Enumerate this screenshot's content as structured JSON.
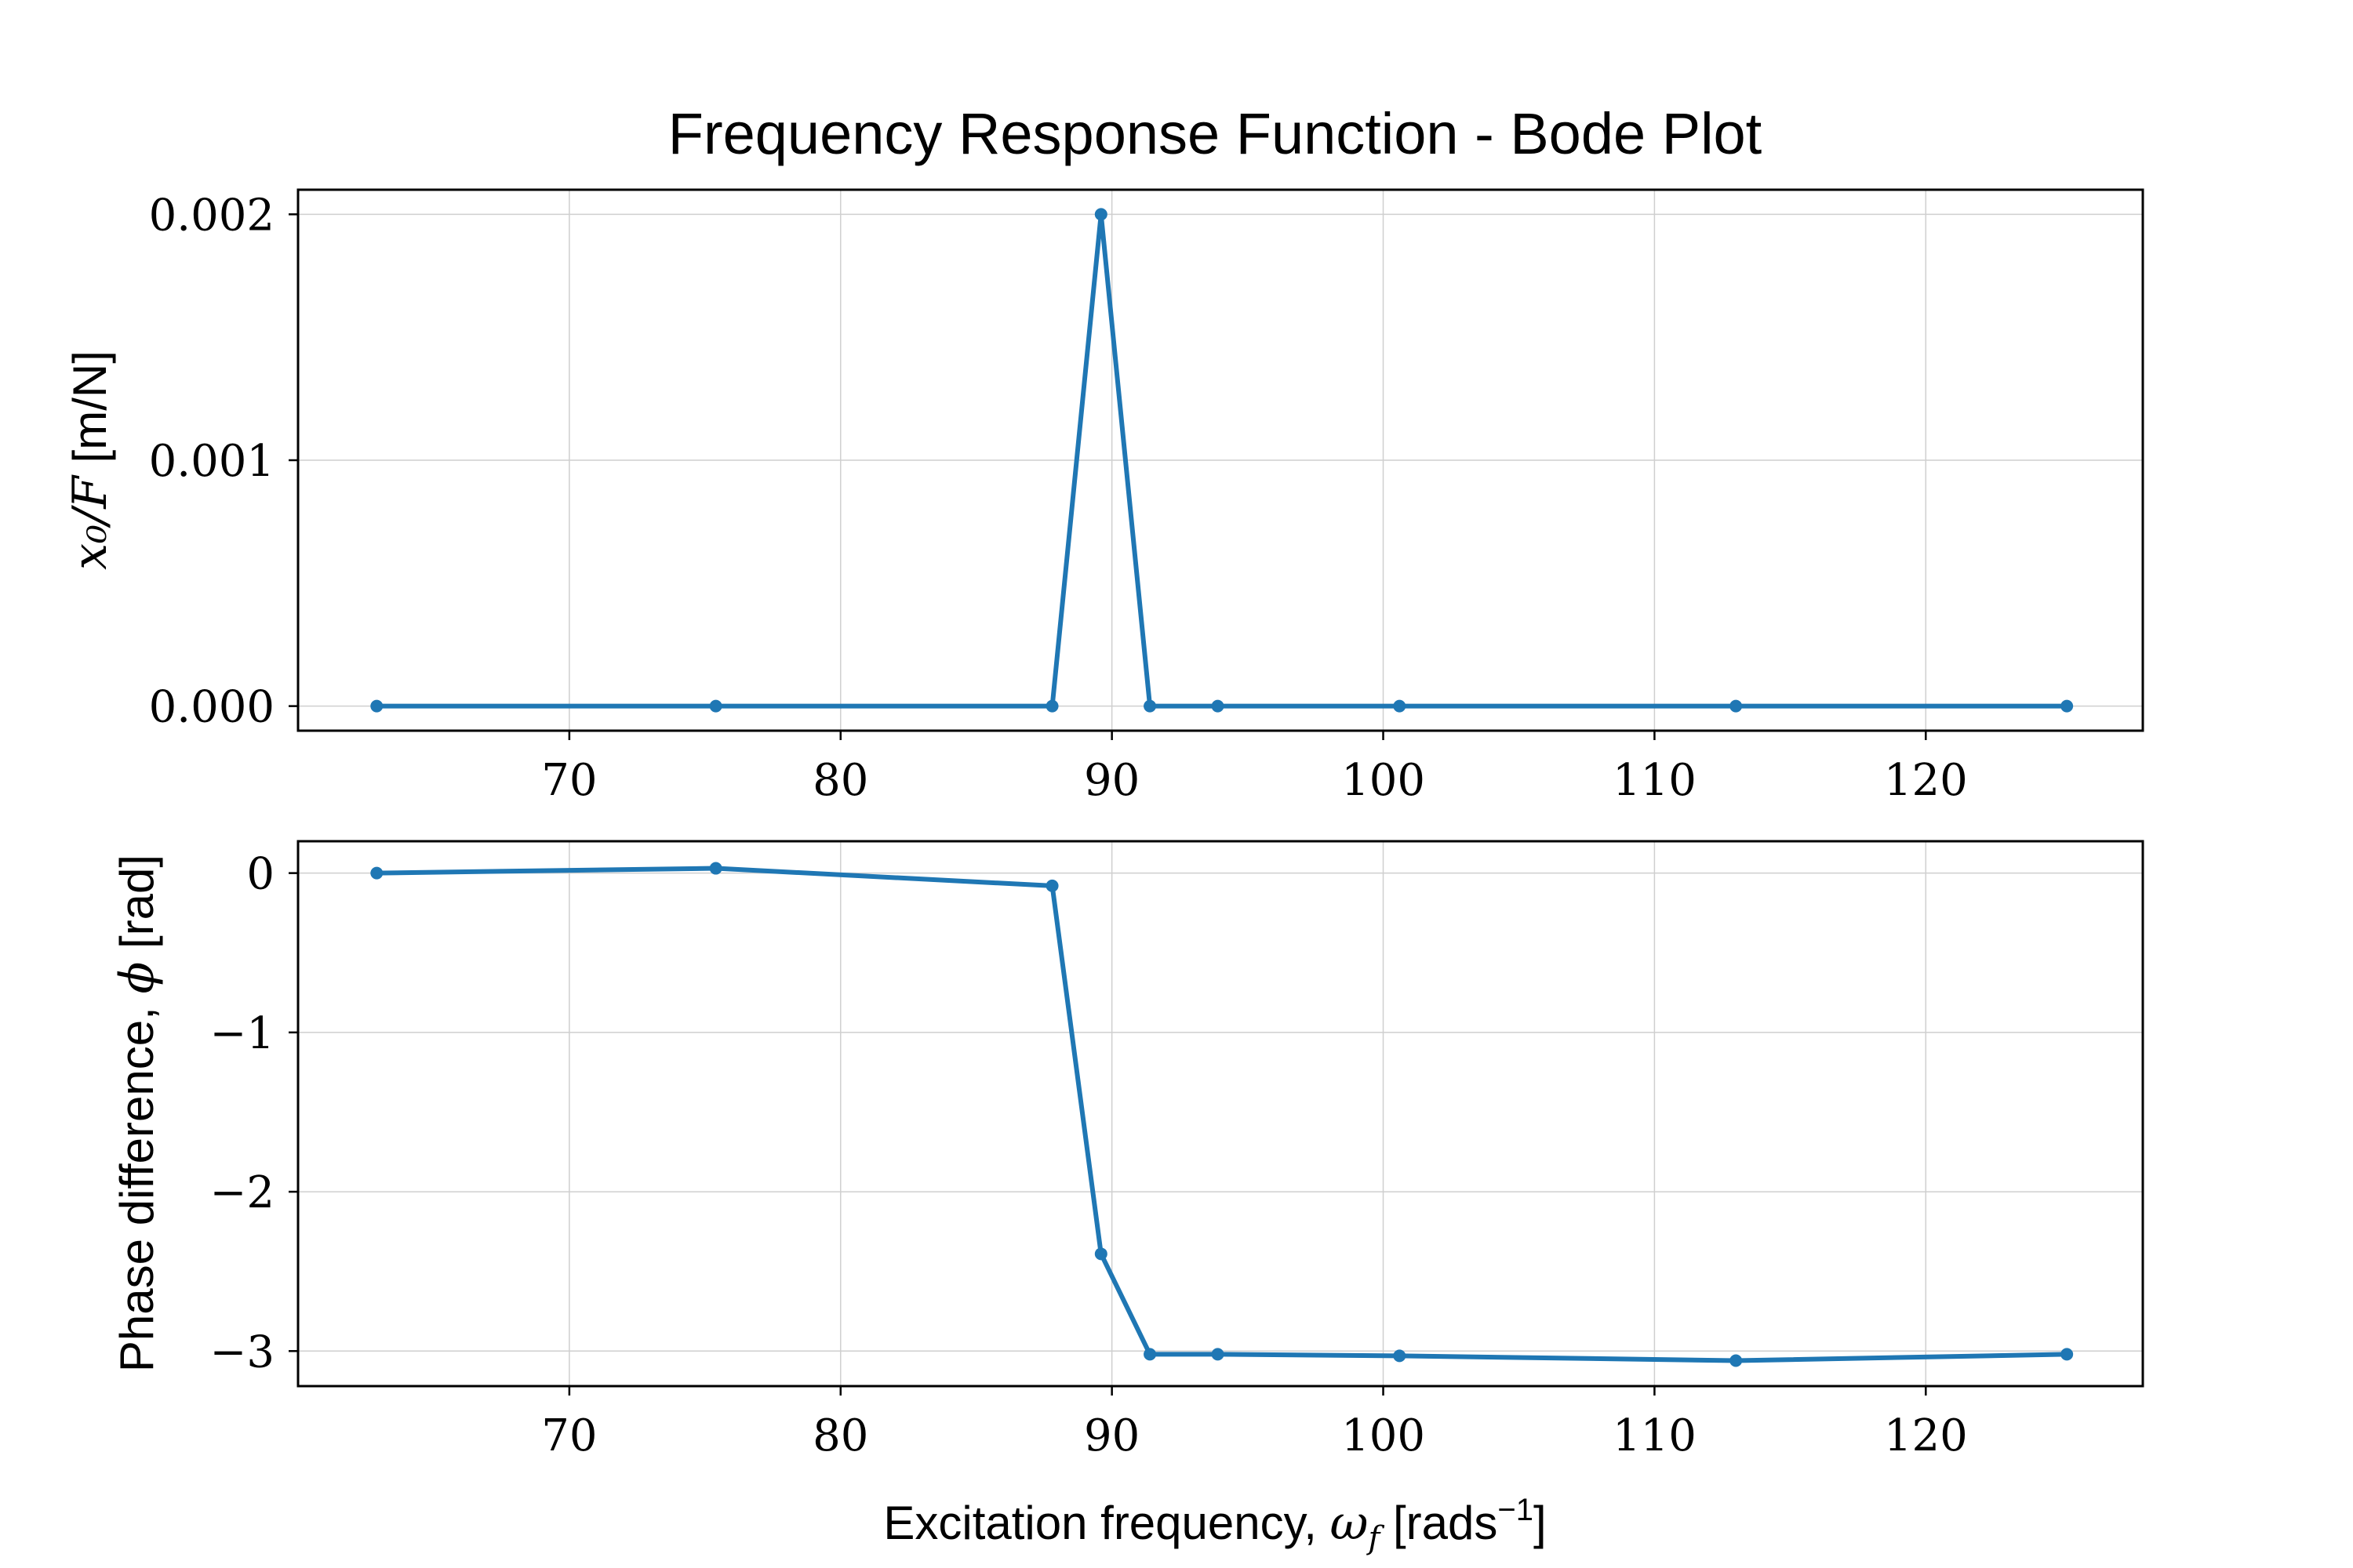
{
  "figure": {
    "title": "Frequency Response Function - Bode Plot",
    "series_color": "#1f77b4"
  },
  "chart_data": [
    {
      "type": "line",
      "ylabel_math": "x₀/F",
      "ylabel_text": " [m/N]",
      "xlabel": "",
      "xlim": [
        60,
        128
      ],
      "ylim": [
        -0.0001,
        0.0021
      ],
      "xticks": [
        70,
        80,
        90,
        100,
        110,
        120
      ],
      "yticks": [
        0.0,
        0.001,
        0.002
      ],
      "ytick_labels": [
        "0.000",
        "0.001",
        "0.002"
      ],
      "grid": true,
      "series": [
        {
          "x": [
            62.9,
            75.4,
            87.8,
            89.6,
            91.4,
            93.9,
            100.6,
            113.0,
            125.2
          ],
          "y": [
            0.0,
            0.0,
            0.0,
            0.002,
            0.0,
            0.0,
            0.0,
            0.0,
            0.0
          ]
        }
      ]
    },
    {
      "type": "line",
      "ylabel_text": "Phase difference, ",
      "ylabel_math": "ϕ",
      "ylabel_unit": " [rad]",
      "xlabel_text": "Excitation frequency, ",
      "xlabel_math": "ω",
      "xlabel_sub": "f",
      "xlabel_unit_pre": " [rads",
      "xlabel_sup": "−1",
      "xlabel_unit_post": "]",
      "xlim": [
        60,
        128
      ],
      "ylim": [
        -3.22,
        0.2
      ],
      "xticks": [
        70,
        80,
        90,
        100,
        110,
        120
      ],
      "yticks": [
        0,
        -1,
        -2,
        -3
      ],
      "ytick_labels": [
        "0",
        "−1",
        "−2",
        "−3"
      ],
      "grid": true,
      "series": [
        {
          "x": [
            62.9,
            75.4,
            87.8,
            89.6,
            91.4,
            93.9,
            100.6,
            113.0,
            125.2
          ],
          "y": [
            0.0,
            0.03,
            -0.08,
            -2.39,
            -3.02,
            -3.02,
            -3.03,
            -3.06,
            -3.02
          ]
        }
      ]
    }
  ]
}
